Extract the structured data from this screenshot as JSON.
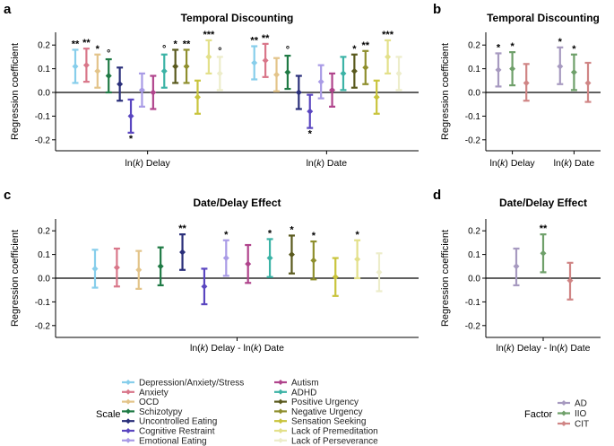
{
  "chart_data": [
    {
      "panel": "a",
      "type": "errorbar",
      "title": "Temporal Discounting",
      "ylabel": "Regression coefficient",
      "ylim": [
        -0.25,
        0.25
      ],
      "yticks": [
        -0.2,
        -0.1,
        0.0,
        0.1,
        0.2
      ],
      "ytick_labels": [
        "-0.2",
        "-0.1",
        "0.0",
        "0.1",
        "0.2"
      ],
      "groups": [
        {
          "pre": "ln(",
          "var": "k",
          "post": ") Delay",
          "points": [
            {
              "name": "Depression/Anxiety/Stress",
              "value": 0.11,
              "lo": 0.04,
              "hi": 0.18,
              "sig": "**"
            },
            {
              "name": "Anxiety",
              "value": 0.115,
              "lo": 0.045,
              "hi": 0.185,
              "sig": "**"
            },
            {
              "name": "OCD",
              "value": 0.09,
              "lo": 0.02,
              "hi": 0.16,
              "sig": "*"
            },
            {
              "name": "Schizotypy",
              "value": 0.07,
              "lo": 0.0,
              "hi": 0.14,
              "sig": "°"
            },
            {
              "name": "Uncontrolled Eating",
              "value": 0.035,
              "lo": -0.035,
              "hi": 0.105,
              "sig": ""
            },
            {
              "name": "Cognitive Restraint",
              "value": -0.1,
              "lo": -0.17,
              "hi": -0.03,
              "sig": "*"
            },
            {
              "name": "Emotional Eating",
              "value": 0.01,
              "lo": -0.06,
              "hi": 0.08,
              "sig": ""
            },
            {
              "name": "Autism",
              "value": 0.0,
              "lo": -0.07,
              "hi": 0.07,
              "sig": ""
            },
            {
              "name": "ADHD",
              "value": 0.09,
              "lo": 0.02,
              "hi": 0.16,
              "sig": "°"
            },
            {
              "name": "Positive Urgency",
              "value": 0.11,
              "lo": 0.04,
              "hi": 0.18,
              "sig": "*"
            },
            {
              "name": "Negative Urgency",
              "value": 0.11,
              "lo": 0.04,
              "hi": 0.18,
              "sig": "**"
            },
            {
              "name": "Sensation Seeking",
              "value": -0.02,
              "lo": -0.09,
              "hi": 0.05,
              "sig": ""
            },
            {
              "name": "Lack of Premeditation",
              "value": 0.15,
              "lo": 0.08,
              "hi": 0.22,
              "sig": "***"
            },
            {
              "name": "Lack of Perseverance",
              "value": 0.08,
              "lo": 0.01,
              "hi": 0.15,
              "sig": "°"
            }
          ]
        },
        {
          "pre": "ln(",
          "var": "k",
          "post": ") Date",
          "points": [
            {
              "name": "Depression/Anxiety/Stress",
              "value": 0.125,
              "lo": 0.055,
              "hi": 0.195,
              "sig": "**"
            },
            {
              "name": "Anxiety",
              "value": 0.135,
              "lo": 0.065,
              "hi": 0.205,
              "sig": "**"
            },
            {
              "name": "OCD",
              "value": 0.075,
              "lo": 0.005,
              "hi": 0.145,
              "sig": ""
            },
            {
              "name": "Schizotypy",
              "value": 0.085,
              "lo": 0.015,
              "hi": 0.155,
              "sig": "°"
            },
            {
              "name": "Uncontrolled Eating",
              "value": 0.0,
              "lo": -0.07,
              "hi": 0.07,
              "sig": ""
            },
            {
              "name": "Cognitive Restraint",
              "value": -0.08,
              "lo": -0.15,
              "hi": -0.01,
              "sig": "*"
            },
            {
              "name": "Emotional Eating",
              "value": 0.045,
              "lo": -0.025,
              "hi": 0.115,
              "sig": ""
            },
            {
              "name": "Autism",
              "value": 0.01,
              "lo": -0.06,
              "hi": 0.08,
              "sig": ""
            },
            {
              "name": "ADHD",
              "value": 0.08,
              "lo": 0.01,
              "hi": 0.15,
              "sig": ""
            },
            {
              "name": "Positive Urgency",
              "value": 0.09,
              "lo": 0.02,
              "hi": 0.16,
              "sig": "*"
            },
            {
              "name": "Negative Urgency",
              "value": 0.105,
              "lo": 0.035,
              "hi": 0.175,
              "sig": "**"
            },
            {
              "name": "Sensation Seeking",
              "value": -0.02,
              "lo": -0.09,
              "hi": 0.05,
              "sig": ""
            },
            {
              "name": "Lack of Premeditation",
              "value": 0.15,
              "lo": 0.08,
              "hi": 0.22,
              "sig": "***"
            },
            {
              "name": "Lack of Perseverance",
              "value": 0.08,
              "lo": 0.01,
              "hi": 0.15,
              "sig": ""
            }
          ]
        }
      ]
    },
    {
      "panel": "b",
      "type": "errorbar",
      "title": "Temporal Discounting",
      "ylabel": "Regression coefficient",
      "ylim": [
        -0.25,
        0.25
      ],
      "yticks": [
        -0.2,
        -0.1,
        0.0,
        0.1,
        0.2
      ],
      "ytick_labels": [
        "-0.2",
        "-0.1",
        "0.0",
        "0.1",
        "0.2"
      ],
      "groups": [
        {
          "pre": "ln(",
          "var": "k",
          "post": ") Delay",
          "points": [
            {
              "name": "AD",
              "value": 0.095,
              "lo": 0.025,
              "hi": 0.165,
              "sig": "*"
            },
            {
              "name": "IIO",
              "value": 0.1,
              "lo": 0.03,
              "hi": 0.17,
              "sig": "*"
            },
            {
              "name": "CIT",
              "value": 0.04,
              "lo": -0.035,
              "hi": 0.12,
              "sig": ""
            }
          ]
        },
        {
          "pre": "ln(",
          "var": "k",
          "post": ") Date",
          "points": [
            {
              "name": "AD",
              "value": 0.11,
              "lo": 0.035,
              "hi": 0.19,
              "sig": "*"
            },
            {
              "name": "IIO",
              "value": 0.085,
              "lo": 0.01,
              "hi": 0.16,
              "sig": "*"
            },
            {
              "name": "CIT",
              "value": 0.04,
              "lo": -0.04,
              "hi": 0.125,
              "sig": ""
            }
          ]
        }
      ]
    },
    {
      "panel": "c",
      "type": "errorbar",
      "title": "Date/Delay Effect",
      "ylabel": "Regression coefficient",
      "ylim": [
        -0.25,
        0.25
      ],
      "yticks": [
        -0.2,
        -0.1,
        0.0,
        0.1,
        0.2
      ],
      "ytick_labels": [
        "-0.2",
        "-0.1",
        "0.0",
        "0.1",
        "0.2"
      ],
      "groups": [
        {
          "pre": "ln(",
          "var": "k",
          "post": ") Delay - ln(",
          "var2": "k",
          "post2": ") Date",
          "points": [
            {
              "name": "Depression/Anxiety/Stress",
              "value": 0.04,
              "lo": -0.04,
              "hi": 0.12,
              "sig": ""
            },
            {
              "name": "Anxiety",
              "value": 0.045,
              "lo": -0.035,
              "hi": 0.125,
              "sig": ""
            },
            {
              "name": "OCD",
              "value": 0.035,
              "lo": -0.045,
              "hi": 0.115,
              "sig": ""
            },
            {
              "name": "Schizotypy",
              "value": 0.05,
              "lo": -0.03,
              "hi": 0.13,
              "sig": ""
            },
            {
              "name": "Uncontrolled Eating",
              "value": 0.11,
              "lo": 0.035,
              "hi": 0.185,
              "sig": "**"
            },
            {
              "name": "Cognitive Restraint",
              "value": -0.035,
              "lo": -0.11,
              "hi": 0.04,
              "sig": ""
            },
            {
              "name": "Emotional Eating",
              "value": 0.085,
              "lo": 0.01,
              "hi": 0.16,
              "sig": "*"
            },
            {
              "name": "Autism",
              "value": 0.06,
              "lo": -0.02,
              "hi": 0.14,
              "sig": ""
            },
            {
              "name": "ADHD",
              "value": 0.085,
              "lo": 0.005,
              "hi": 0.165,
              "sig": "*"
            },
            {
              "name": "Positive Urgency",
              "value": 0.1,
              "lo": 0.02,
              "hi": 0.18,
              "sig": "*"
            },
            {
              "name": "Negative Urgency",
              "value": 0.075,
              "lo": -0.005,
              "hi": 0.155,
              "sig": "*"
            },
            {
              "name": "Sensation Seeking",
              "value": 0.005,
              "lo": -0.075,
              "hi": 0.085,
              "sig": ""
            },
            {
              "name": "Lack of Premeditation",
              "value": 0.08,
              "lo": 0.0,
              "hi": 0.16,
              "sig": "*"
            },
            {
              "name": "Lack of Perseverance",
              "value": 0.025,
              "lo": -0.055,
              "hi": 0.105,
              "sig": ""
            }
          ]
        }
      ]
    },
    {
      "panel": "d",
      "type": "errorbar",
      "title": "Date/Delay Effect",
      "ylabel": "Regression coefficient",
      "ylim": [
        -0.25,
        0.25
      ],
      "yticks": [
        -0.2,
        -0.1,
        0.0,
        0.1,
        0.2
      ],
      "ytick_labels": [
        "-0.2",
        "-0.1",
        "0.0",
        "0.1",
        "0.2"
      ],
      "groups": [
        {
          "pre": "ln(",
          "var": "k",
          "post": ") Delay - ln(",
          "var2": "k",
          "post2": ") Date",
          "points": [
            {
              "name": "AD",
              "value": 0.05,
              "lo": -0.03,
              "hi": 0.125,
              "sig": ""
            },
            {
              "name": "IIO",
              "value": 0.105,
              "lo": 0.025,
              "hi": 0.185,
              "sig": "**"
            },
            {
              "name": "CIT",
              "value": -0.01,
              "lo": -0.09,
              "hi": 0.065,
              "sig": ""
            }
          ]
        }
      ]
    }
  ],
  "legend_scale": {
    "title": "Scale",
    "items": [
      {
        "label": "Depression/Anxiety/Stress",
        "color": "#87ceeb"
      },
      {
        "label": "Anxiety",
        "color": "#d9778a"
      },
      {
        "label": "OCD",
        "color": "#e3c48a"
      },
      {
        "label": "Schizotypy",
        "color": "#1f7a45"
      },
      {
        "label": "Uncontrolled Eating",
        "color": "#2a2f7a"
      },
      {
        "label": "Cognitive Restraint",
        "color": "#5a46c0"
      },
      {
        "label": "Emotional Eating",
        "color": "#a99be6"
      },
      {
        "label": "Autism",
        "color": "#b0448c"
      },
      {
        "label": "ADHD",
        "color": "#3cb3a6"
      },
      {
        "label": "Positive Urgency",
        "color": "#5a5a1e"
      },
      {
        "label": "Negative Urgency",
        "color": "#8f8f2e"
      },
      {
        "label": "Sensation Seeking",
        "color": "#c9c43c"
      },
      {
        "label": "Lack of Premeditation",
        "color": "#e3e08a"
      },
      {
        "label": "Lack of Perseverance",
        "color": "#ededca"
      }
    ]
  },
  "legend_factor": {
    "title": "Factor",
    "items": [
      {
        "label": "AD",
        "color": "#a79ac0"
      },
      {
        "label": "IIO",
        "color": "#6fa06a"
      },
      {
        "label": "CIT",
        "color": "#d08585"
      }
    ]
  }
}
